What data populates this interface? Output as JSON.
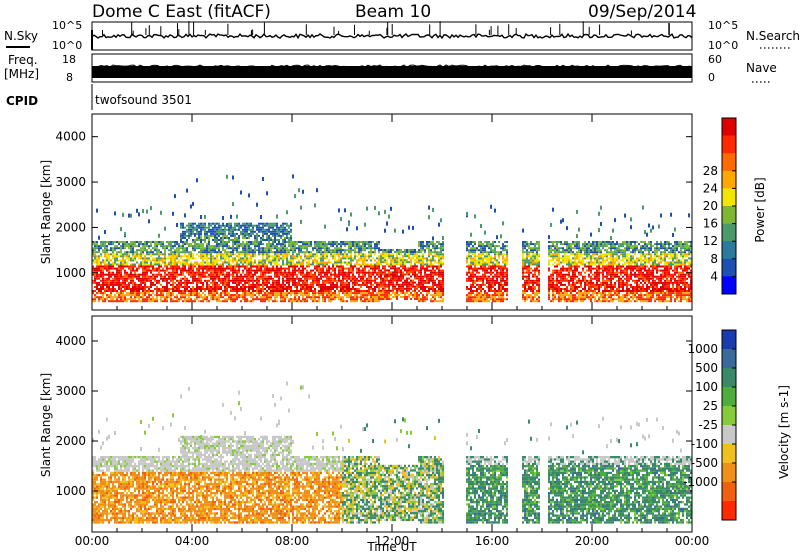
{
  "header": {
    "station": "Dome C East (fitACF)",
    "beam": "Beam 10",
    "date": "09/Sep/2014"
  },
  "side_labels": {
    "nsky": "N.Sky",
    "nsearch": "N.Search",
    "freq_line1": "Freq.",
    "freq_line2": "[MHz]",
    "nave": "Nave",
    "cpid": "CPID"
  },
  "strip_ticks": {
    "nsky_left": [
      "10^5",
      "10^0"
    ],
    "nsky_right": [
      "10^5",
      "10^0"
    ],
    "freq_left": [
      "18",
      "8"
    ],
    "freq_right": [
      "60",
      "0"
    ]
  },
  "cpid_text": "twofsound 3501",
  "chart_data": [
    {
      "type": "heatmap",
      "panel": "power",
      "ylabel": "Slant Range [km]",
      "ylim": [
        180,
        4500
      ],
      "yticks": [
        "1000",
        "2000",
        "3000",
        "4000"
      ],
      "xlabel": "",
      "colorbar_label": "Power [dB]",
      "colorbar_ticks": [
        "4",
        "8",
        "12",
        "16",
        "20",
        "24",
        "28"
      ],
      "colorbar_colors": [
        "#0000ff",
        "#1e50b4",
        "#2a7a9e",
        "#4a9a6a",
        "#7cb834",
        "#f2e600",
        "#ffa800",
        "#ff6a00",
        "#ff2a00",
        "#e00000"
      ],
      "scatter_color": "#1f4fa0"
    },
    {
      "type": "heatmap",
      "panel": "velocity",
      "ylabel": "Slant Range [km]",
      "ylim": [
        180,
        4500
      ],
      "yticks": [
        "1000",
        "2000",
        "3000",
        "4000"
      ],
      "xlabel": "Time UT",
      "xticks": [
        "00:00",
        "04:00",
        "08:00",
        "12:00",
        "16:00",
        "20:00",
        "00:00"
      ],
      "colorbar_label": "Velocity [m s-1]",
      "colorbar_ticks": [
        "1000",
        "500",
        "100",
        "25",
        "-25",
        "-100",
        "-500",
        "-1000"
      ],
      "colorbar_colors": [
        "#1a3ab0",
        "#3a6a9a",
        "#3a8a6a",
        "#4fae3a",
        "#86cc3a",
        "#c8c8c8",
        "#f0c020",
        "#f09018",
        "#f06010",
        "#ff2a00"
      ]
    }
  ],
  "colors": {
    "gray": "#c8c8c8",
    "orange": "#f08a18",
    "ground_scatter": "#c0c0c0"
  }
}
